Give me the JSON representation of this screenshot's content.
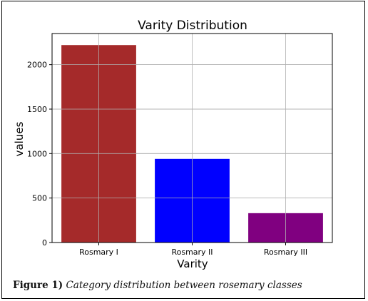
{
  "chart_data": {
    "type": "bar",
    "title": "Varity Distribution",
    "xlabel": "Varity",
    "ylabel": "values",
    "categories": [
      "Rosmary I",
      "Rosmary II",
      "Rosmary III"
    ],
    "values": [
      2220,
      940,
      330
    ],
    "colors": [
      "#a52a2a",
      "#0000ff",
      "#800080"
    ],
    "ylim": [
      0,
      2350
    ],
    "yticks": [
      0,
      500,
      1000,
      1500,
      2000
    ],
    "grid": true
  },
  "caption": {
    "label": "Figure 1)",
    "text": "Category distribution between rosemary classes"
  }
}
